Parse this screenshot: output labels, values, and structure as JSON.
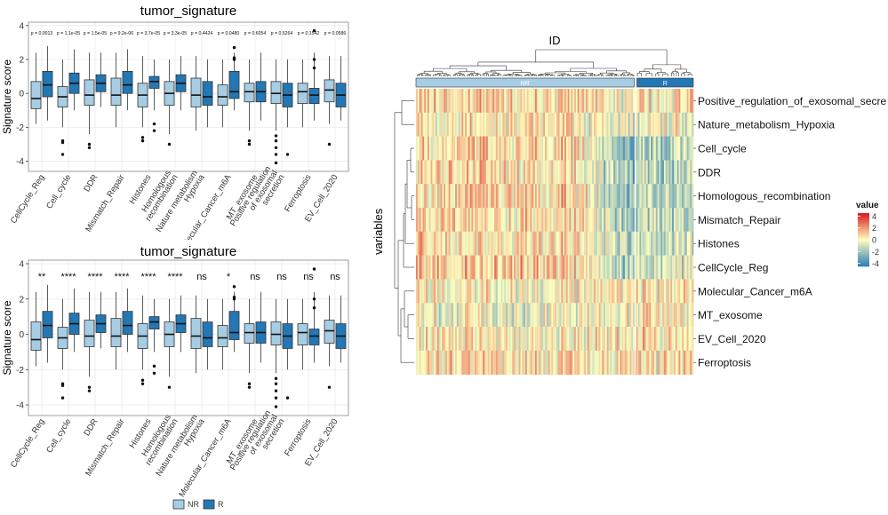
{
  "colors": {
    "nr_fill": "#a6cde3",
    "r_fill": "#2277b4",
    "grid": "#ebebeb",
    "heat_low": "#2c7bb6",
    "heat_mid": "#ffffbf",
    "heat_high": "#d7191c"
  },
  "chart_data": [
    {
      "type": "box",
      "title": "tumor_signature",
      "ylabel": "Signature score",
      "ylim": [
        -4.6,
        4.2
      ],
      "yticks": [
        -4,
        -2,
        0,
        2,
        4
      ],
      "categories": [
        "CellCycle_Reg",
        "Cell_cycle",
        "DDR",
        "Mismatch_Repair",
        "Histones",
        "Homologous recombination",
        "Nature metabolism Hypoxia",
        "Molecular_Cancer_m6A",
        "MT_exosome",
        "Positive regulation of exosomal secretion",
        "Ferroptosis",
        "EV_Cell_2020"
      ],
      "annotations": [
        "p = 0.0013",
        "p = 1.1e-05",
        "p = 1.5e-05",
        "p = 9.2e-06",
        "p = 3.7e-05",
        "p = 3.3e-05",
        "p = 0.4424",
        "p = 0.0480",
        "p = 0.6054",
        "p = 0.5264",
        "p = 0.1542",
        "p = 0.0586"
      ],
      "series": [
        {
          "name": "NR",
          "boxes": [
            {
              "min": -1.8,
              "q1": -0.9,
              "median": -0.3,
              "q3": 0.7,
              "max": 2.4
            },
            {
              "min": -2.0,
              "q1": -0.8,
              "median": -0.2,
              "q3": 0.4,
              "max": 2.0,
              "outliers": [
                -2.8,
                -2.9,
                -3.6
              ]
            },
            {
              "min": -2.4,
              "q1": -0.7,
              "median": -0.1,
              "q3": 0.8,
              "max": 2.4,
              "outliers": [
                -3.0,
                -3.2
              ]
            },
            {
              "min": -2.0,
              "q1": -0.7,
              "median": -0.1,
              "q3": 0.9,
              "max": 2.4
            },
            {
              "min": -2.0,
              "q1": -0.8,
              "median": -0.1,
              "q3": 0.6,
              "max": 2.2,
              "outliers": [
                -2.6,
                -2.8
              ]
            },
            {
              "min": -2.4,
              "q1": -0.7,
              "median": 0.0,
              "q3": 0.7,
              "max": 2.0,
              "outliers": [
                -3.0
              ]
            },
            {
              "min": -2.2,
              "q1": -0.8,
              "median": -0.1,
              "q3": 0.9,
              "max": 2.2
            },
            {
              "min": -2.0,
              "q1": -0.7,
              "median": -0.2,
              "q3": 0.5,
              "max": 2.0
            },
            {
              "min": -2.2,
              "q1": -0.5,
              "median": 0.1,
              "q3": 0.6,
              "max": 2.0,
              "outliers": [
                -2.8,
                -3.0
              ]
            },
            {
              "min": -2.2,
              "q1": -0.6,
              "median": 0.0,
              "q3": 0.7,
              "max": 2.0,
              "outliers": [
                -2.5,
                -2.8,
                -3.2,
                -3.6,
                -4.1
              ]
            },
            {
              "min": -2.0,
              "q1": -0.6,
              "median": 0.1,
              "q3": 0.6,
              "max": 2.0
            },
            {
              "min": -1.8,
              "q1": -0.5,
              "median": 0.2,
              "q3": 0.8,
              "max": 2.2,
              "outliers": [
                -3.0
              ]
            }
          ]
        },
        {
          "name": "R",
          "boxes": [
            {
              "min": -1.6,
              "q1": -0.2,
              "median": 0.5,
              "q3": 1.3,
              "max": 2.8
            },
            {
              "min": -1.0,
              "q1": 0.0,
              "median": 0.6,
              "q3": 1.2,
              "max": 2.6
            },
            {
              "min": -0.8,
              "q1": 0.1,
              "median": 0.6,
              "q3": 1.1,
              "max": 2.4
            },
            {
              "min": -1.0,
              "q1": 0.0,
              "median": 0.5,
              "q3": 1.3,
              "max": 2.6
            },
            {
              "min": -1.0,
              "q1": 0.3,
              "median": 0.7,
              "q3": 1.0,
              "max": 2.0,
              "outliers": [
                -1.8,
                -2.2
              ]
            },
            {
              "min": -1.0,
              "q1": 0.1,
              "median": 0.6,
              "q3": 1.1,
              "max": 2.2
            },
            {
              "min": -2.0,
              "q1": -0.7,
              "median": -0.2,
              "q3": 0.7,
              "max": 2.0
            },
            {
              "min": -1.0,
              "q1": -0.3,
              "median": 0.1,
              "q3": 1.3,
              "max": 2.4,
              "outliers": [
                2.0,
                2.1,
                2.7
              ]
            },
            {
              "min": -1.6,
              "q1": -0.5,
              "median": 0.1,
              "q3": 0.7,
              "max": 2.4
            },
            {
              "min": -2.0,
              "q1": -0.8,
              "median": -0.1,
              "q3": 0.6,
              "max": 2.0,
              "outliers": [
                -3.6
              ]
            },
            {
              "min": -1.6,
              "q1": -0.6,
              "median": -0.1,
              "q3": 0.3,
              "max": 2.4,
              "outliers": [
                1.5,
                2.0,
                3.7
              ]
            },
            {
              "min": -1.6,
              "q1": -0.8,
              "median": -0.1,
              "q3": 0.6,
              "max": 2.2
            }
          ]
        }
      ]
    },
    {
      "type": "box",
      "title": "tumor_signature",
      "ylabel": "Signature score",
      "ylim": [
        -4.6,
        4.2
      ],
      "yticks": [
        -4,
        -2,
        0,
        2,
        4
      ],
      "categories": [
        "CellCycle_Reg",
        "Cell_cycle",
        "DDR",
        "Mismatch_Repair",
        "Histones",
        "Homologous recombination",
        "Nature metabolism Hypoxia",
        "Molecular_Cancer_m6A",
        "MT_exosome",
        "Positive regulation of exosomal secretion",
        "Ferroptosis",
        "EV_Cell_2020"
      ],
      "annotations": [
        "**",
        "****",
        "****",
        "****",
        "****",
        "****",
        "ns",
        "*",
        "ns",
        "ns",
        "ns",
        "ns"
      ],
      "legend": [
        "NR",
        "R"
      ],
      "series": [
        {
          "name": "NR",
          "boxes": [
            {
              "min": -1.8,
              "q1": -0.9,
              "median": -0.3,
              "q3": 0.7,
              "max": 2.4
            },
            {
              "min": -2.0,
              "q1": -0.8,
              "median": -0.2,
              "q3": 0.4,
              "max": 2.0,
              "outliers": [
                -2.8,
                -2.9,
                -3.6
              ]
            },
            {
              "min": -2.4,
              "q1": -0.7,
              "median": -0.1,
              "q3": 0.8,
              "max": 2.4,
              "outliers": [
                -3.0,
                -3.2
              ]
            },
            {
              "min": -2.0,
              "q1": -0.7,
              "median": -0.1,
              "q3": 0.9,
              "max": 2.4
            },
            {
              "min": -2.0,
              "q1": -0.8,
              "median": -0.1,
              "q3": 0.6,
              "max": 2.2,
              "outliers": [
                -2.6,
                -2.8
              ]
            },
            {
              "min": -2.4,
              "q1": -0.7,
              "median": 0.0,
              "q3": 0.7,
              "max": 2.0,
              "outliers": [
                -3.0
              ]
            },
            {
              "min": -2.2,
              "q1": -0.8,
              "median": -0.1,
              "q3": 0.9,
              "max": 2.2
            },
            {
              "min": -2.0,
              "q1": -0.7,
              "median": -0.2,
              "q3": 0.5,
              "max": 2.0
            },
            {
              "min": -2.2,
              "q1": -0.5,
              "median": 0.1,
              "q3": 0.6,
              "max": 2.0,
              "outliers": [
                -2.8,
                -3.0
              ]
            },
            {
              "min": -2.2,
              "q1": -0.6,
              "median": 0.0,
              "q3": 0.7,
              "max": 2.0,
              "outliers": [
                -2.5,
                -2.8,
                -3.2,
                -3.6,
                -4.1
              ]
            },
            {
              "min": -2.0,
              "q1": -0.6,
              "median": 0.1,
              "q3": 0.6,
              "max": 2.0
            },
            {
              "min": -1.8,
              "q1": -0.5,
              "median": 0.2,
              "q3": 0.8,
              "max": 2.2,
              "outliers": [
                -3.0
              ]
            }
          ]
        },
        {
          "name": "R",
          "boxes": [
            {
              "min": -1.6,
              "q1": -0.2,
              "median": 0.5,
              "q3": 1.3,
              "max": 2.8
            },
            {
              "min": -1.0,
              "q1": 0.0,
              "median": 0.6,
              "q3": 1.2,
              "max": 2.6
            },
            {
              "min": -0.8,
              "q1": 0.1,
              "median": 0.6,
              "q3": 1.1,
              "max": 2.4
            },
            {
              "min": -1.0,
              "q1": 0.0,
              "median": 0.5,
              "q3": 1.3,
              "max": 2.6
            },
            {
              "min": -1.0,
              "q1": 0.3,
              "median": 0.7,
              "q3": 1.0,
              "max": 2.0,
              "outliers": [
                -1.8,
                -2.2
              ]
            },
            {
              "min": -1.0,
              "q1": 0.1,
              "median": 0.6,
              "q3": 1.1,
              "max": 2.2
            },
            {
              "min": -2.0,
              "q1": -0.7,
              "median": -0.2,
              "q3": 0.7,
              "max": 2.0
            },
            {
              "min": -1.0,
              "q1": -0.3,
              "median": 0.1,
              "q3": 1.3,
              "max": 2.4,
              "outliers": [
                2.0,
                2.1,
                2.7
              ]
            },
            {
              "min": -1.6,
              "q1": -0.5,
              "median": 0.1,
              "q3": 0.7,
              "max": 2.4
            },
            {
              "min": -2.0,
              "q1": -0.8,
              "median": -0.1,
              "q3": 0.6,
              "max": 2.0,
              "outliers": [
                -3.6
              ]
            },
            {
              "min": -1.6,
              "q1": -0.6,
              "median": -0.1,
              "q3": 0.3,
              "max": 2.4,
              "outliers": [
                1.5,
                2.0,
                3.7
              ]
            },
            {
              "min": -1.6,
              "q1": -0.8,
              "median": -0.1,
              "q3": 0.6,
              "max": 2.2
            }
          ]
        }
      ]
    },
    {
      "type": "heatmap",
      "xlabel": "ID",
      "ylabel": "variables",
      "groups": [
        {
          "label": "NR",
          "fraction": 0.79
        },
        {
          "label": "R",
          "fraction": 0.21
        }
      ],
      "rows": [
        {
          "label": "Positive_regulation_of_exosomal_secre",
          "nr_mean": 1.0,
          "r_mean": 0.6
        },
        {
          "label": "Nature_metabolism_Hypoxia",
          "nr_mean": 0.4,
          "r_mean": -0.2
        },
        {
          "label": "Cell_cycle",
          "nr_mean": 1.0,
          "r_mean": -1.6
        },
        {
          "label": "DDR",
          "nr_mean": 0.8,
          "r_mean": -1.6
        },
        {
          "label": "Homologous_recombination",
          "nr_mean": 0.8,
          "r_mean": -1.4
        },
        {
          "label": "Mismatch_Repair",
          "nr_mean": 0.8,
          "r_mean": -1.4
        },
        {
          "label": "Histones",
          "nr_mean": 0.6,
          "r_mean": -1.0
        },
        {
          "label": "CellCycle_Reg",
          "nr_mean": 1.2,
          "r_mean": -0.8
        },
        {
          "label": "Molecular_Cancer_m6A",
          "nr_mean": 0.2,
          "r_mean": 0.4
        },
        {
          "label": "MT_exosome",
          "nr_mean": -0.2,
          "r_mean": 0.5
        },
        {
          "label": "EV_Cell_2020",
          "nr_mean": 0.3,
          "r_mean": 0.6
        },
        {
          "label": "Ferroptosis",
          "nr_mean": 0.6,
          "r_mean": 0.4
        }
      ],
      "legend": {
        "title": "value",
        "ticks": [
          4,
          2,
          0,
          -2,
          -4
        ],
        "range": [
          -4.5,
          4.5
        ]
      }
    }
  ]
}
